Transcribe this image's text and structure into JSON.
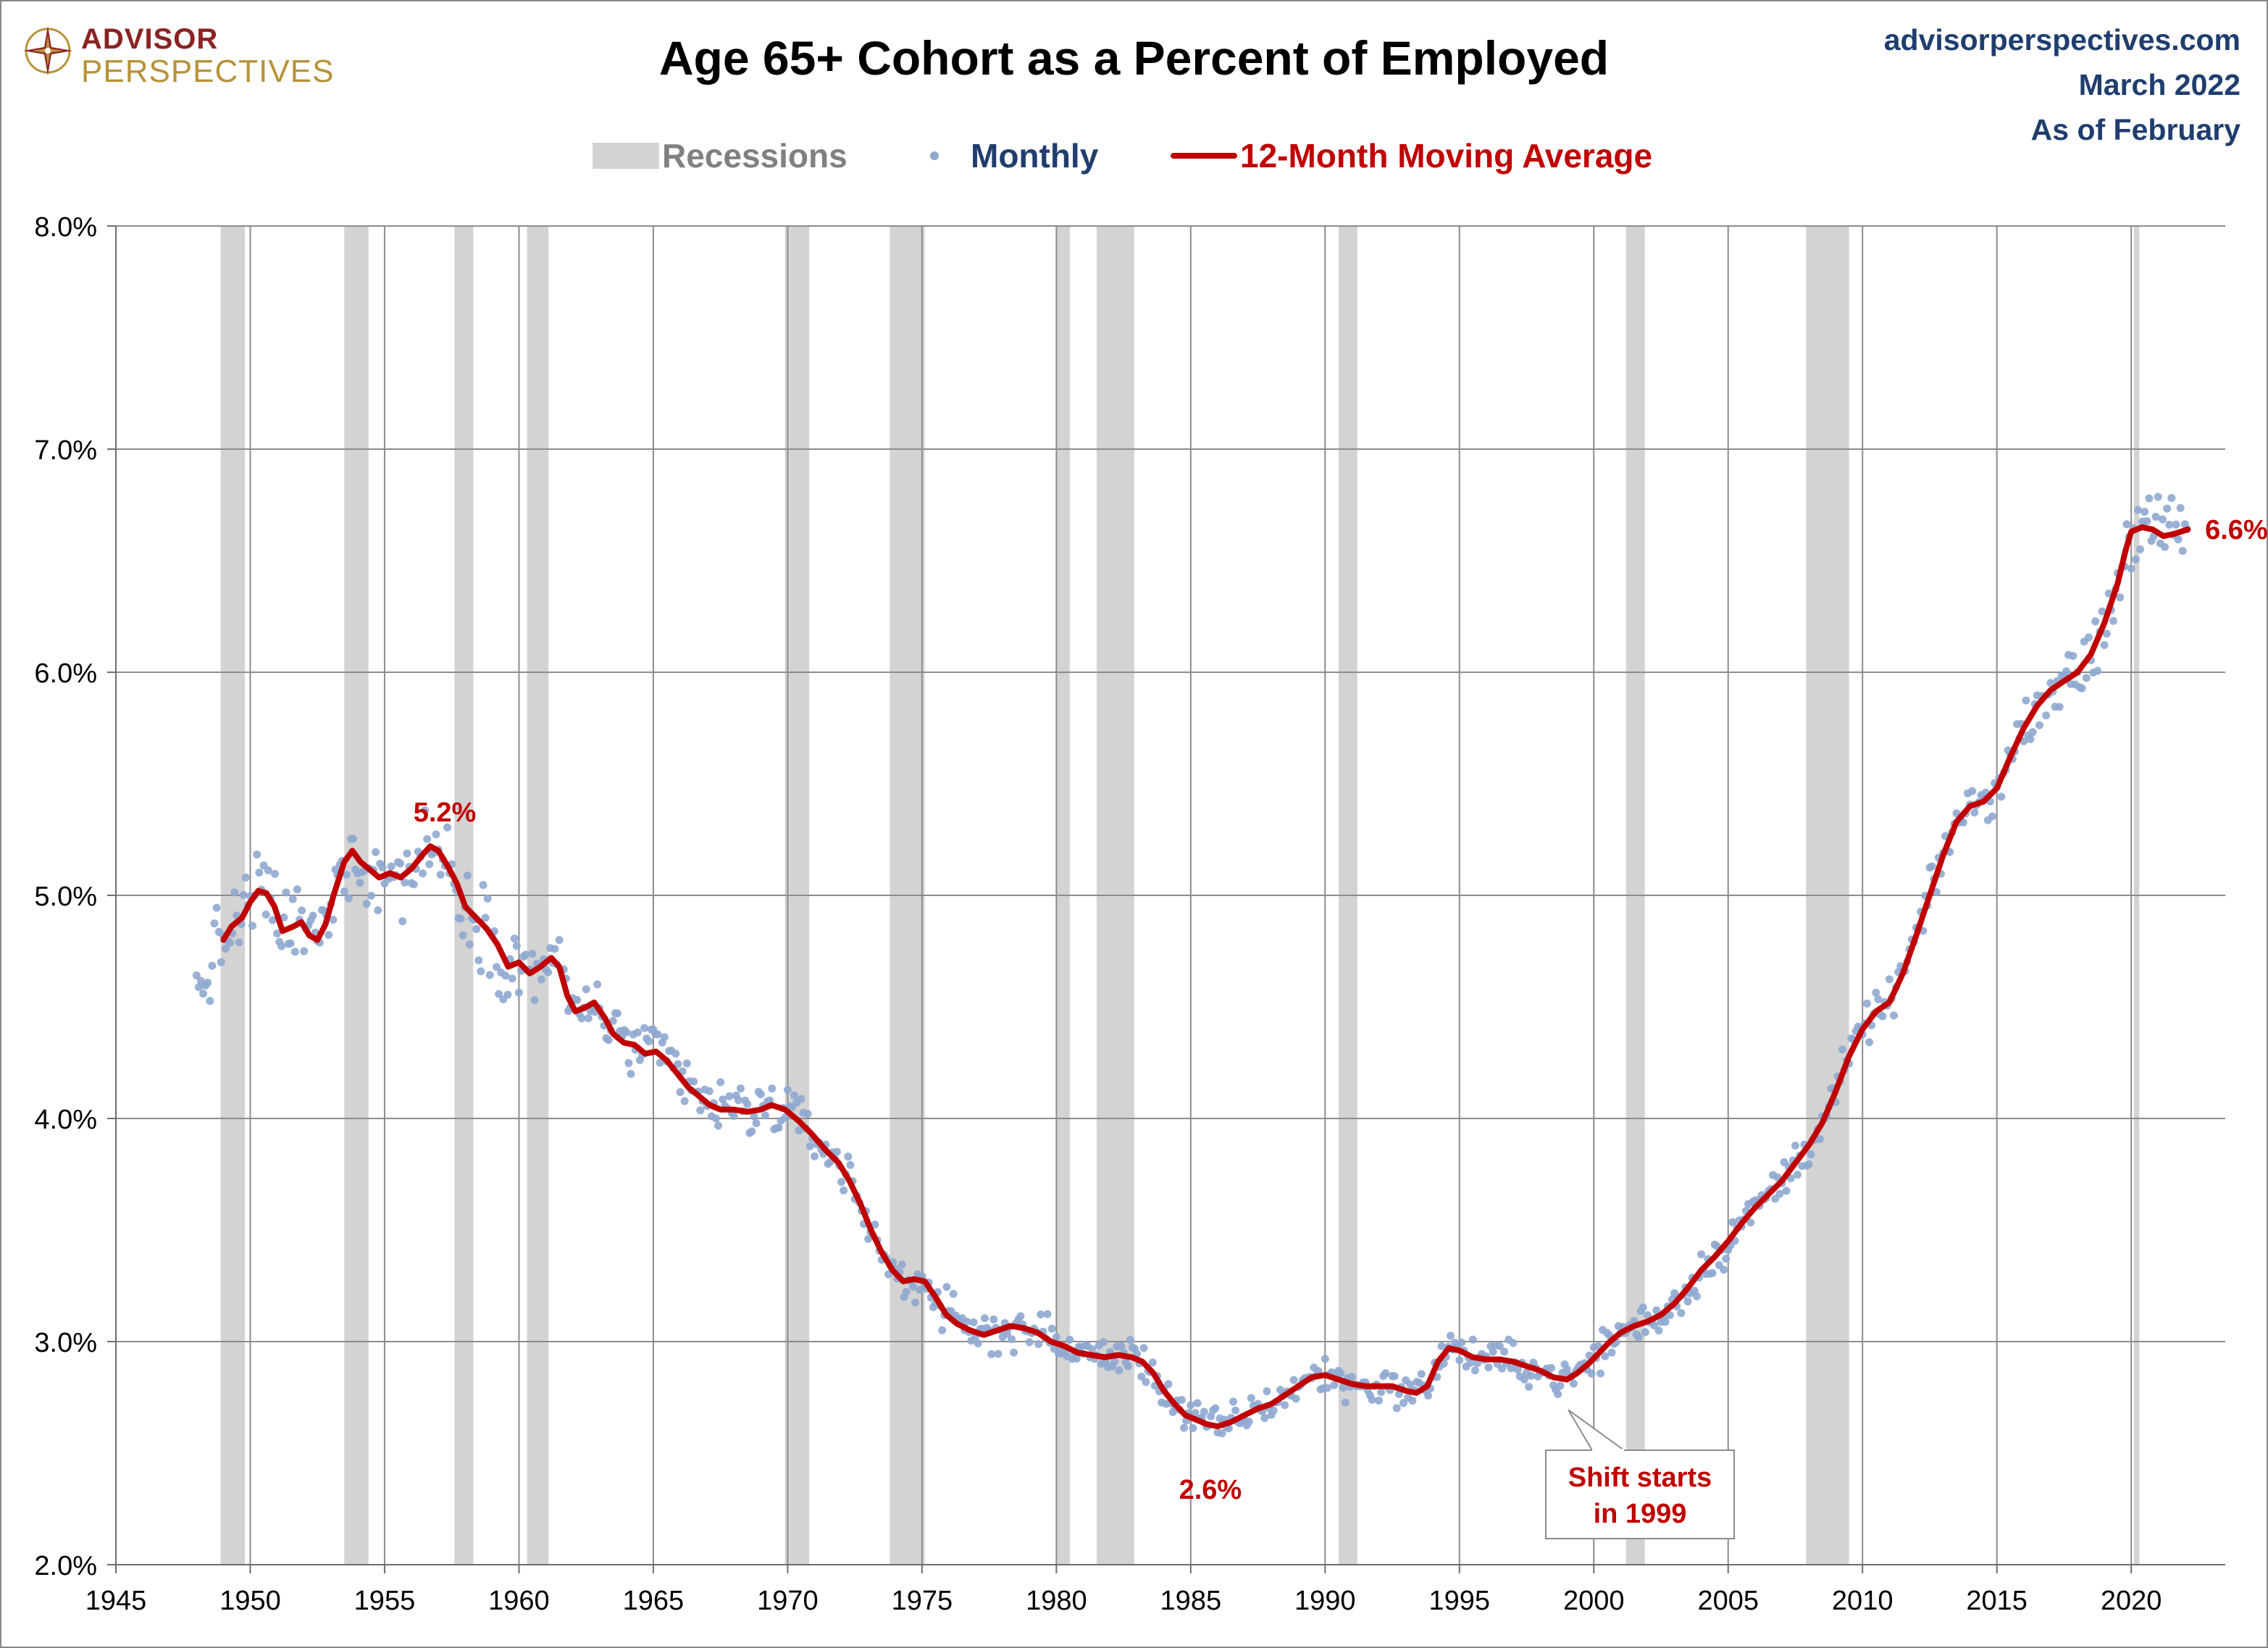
{
  "logo": {
    "line1": "ADVISOR",
    "line2": "PERSPECTIVES"
  },
  "title": "Age 65+ Cohort as a Percent of Employed",
  "source": {
    "site": "advisorperspectives.com",
    "date": "March 2022",
    "as_of": "As of February"
  },
  "legend": {
    "recessions": "Recessions",
    "monthly": "Monthly",
    "moving_average": "12-Month Moving Average"
  },
  "colors": {
    "recession": "#d3d3d3",
    "monthly": "#8fa8d0",
    "moving_average": "#c00000",
    "legend_recessions_text": "#808080",
    "legend_monthly_text": "#1f3e6e",
    "annotation": "#c00000"
  },
  "chart_data": {
    "type": "scatter",
    "title": "Age 65+ Cohort as a Percent of Employed",
    "xlim": [
      1945,
      2023.5
    ],
    "ylim": [
      2.0,
      8.0
    ],
    "x_ticks": [
      1945,
      1950,
      1955,
      1960,
      1965,
      1970,
      1975,
      1980,
      1985,
      1990,
      1995,
      2000,
      2005,
      2010,
      2015,
      2020
    ],
    "x_tick_labels": [
      "1945",
      "1950",
      "1955",
      "1960",
      "1965",
      "1970",
      "1975",
      "1980",
      "1985",
      "1990",
      "1995",
      "2000",
      "2005",
      "2010",
      "2015",
      "2020"
    ],
    "y_ticks": [
      2,
      3,
      4,
      5,
      6,
      7,
      8
    ],
    "y_tick_labels": [
      "2.0%",
      "3.0%",
      "4.0%",
      "5.0%",
      "6.0%",
      "7.0%",
      "8.0%"
    ],
    "grid": true,
    "recessions": [
      [
        1948.9,
        1949.8
      ],
      [
        1953.5,
        1954.4
      ],
      [
        1957.6,
        1958.3
      ],
      [
        1960.3,
        1961.1
      ],
      [
        1969.9,
        1970.8
      ],
      [
        1973.8,
        1975.1
      ],
      [
        1980.0,
        1980.5
      ],
      [
        1981.5,
        1982.9
      ],
      [
        1990.5,
        1991.2
      ],
      [
        2001.2,
        2001.9
      ],
      [
        2007.9,
        2009.5
      ],
      [
        2020.1,
        2020.3
      ]
    ],
    "moving_average_points": [
      [
        1949.0,
        4.8
      ],
      [
        1949.3,
        4.86
      ],
      [
        1949.7,
        4.9
      ],
      [
        1950.0,
        4.97
      ],
      [
        1950.3,
        5.02
      ],
      [
        1950.6,
        5.01
      ],
      [
        1950.9,
        4.95
      ],
      [
        1951.2,
        4.84
      ],
      [
        1951.6,
        4.86
      ],
      [
        1951.9,
        4.88
      ],
      [
        1952.2,
        4.82
      ],
      [
        1952.5,
        4.8
      ],
      [
        1952.8,
        4.87
      ],
      [
        1953.1,
        5.0
      ],
      [
        1953.5,
        5.15
      ],
      [
        1953.8,
        5.2
      ],
      [
        1954.1,
        5.15
      ],
      [
        1954.4,
        5.12
      ],
      [
        1954.8,
        5.08
      ],
      [
        1955.2,
        5.1
      ],
      [
        1955.6,
        5.08
      ],
      [
        1956.0,
        5.12
      ],
      [
        1956.4,
        5.18
      ],
      [
        1956.7,
        5.22
      ],
      [
        1957.0,
        5.2
      ],
      [
        1957.4,
        5.12
      ],
      [
        1957.7,
        5.05
      ],
      [
        1958.0,
        4.95
      ],
      [
        1958.4,
        4.9
      ],
      [
        1958.8,
        4.85
      ],
      [
        1959.2,
        4.78
      ],
      [
        1959.6,
        4.68
      ],
      [
        1960.0,
        4.7
      ],
      [
        1960.4,
        4.65
      ],
      [
        1960.8,
        4.68
      ],
      [
        1961.2,
        4.72
      ],
      [
        1961.5,
        4.68
      ],
      [
        1961.8,
        4.55
      ],
      [
        1962.1,
        4.48
      ],
      [
        1962.5,
        4.5
      ],
      [
        1962.8,
        4.52
      ],
      [
        1963.2,
        4.45
      ],
      [
        1963.5,
        4.38
      ],
      [
        1963.9,
        4.34
      ],
      [
        1964.3,
        4.33
      ],
      [
        1964.7,
        4.29
      ],
      [
        1965.1,
        4.3
      ],
      [
        1965.5,
        4.26
      ],
      [
        1965.9,
        4.2
      ],
      [
        1966.3,
        4.14
      ],
      [
        1966.7,
        4.1
      ],
      [
        1967.1,
        4.06
      ],
      [
        1967.5,
        4.04
      ],
      [
        1968.0,
        4.04
      ],
      [
        1968.5,
        4.03
      ],
      [
        1969.0,
        4.04
      ],
      [
        1969.4,
        4.06
      ],
      [
        1969.9,
        4.04
      ],
      [
        1970.4,
        3.99
      ],
      [
        1970.9,
        3.93
      ],
      [
        1971.4,
        3.86
      ],
      [
        1971.9,
        3.8
      ],
      [
        1972.3,
        3.72
      ],
      [
        1972.7,
        3.62
      ],
      [
        1973.1,
        3.5
      ],
      [
        1973.5,
        3.4
      ],
      [
        1973.9,
        3.32
      ],
      [
        1974.3,
        3.27
      ],
      [
        1974.7,
        3.28
      ],
      [
        1975.1,
        3.27
      ],
      [
        1975.5,
        3.2
      ],
      [
        1975.9,
        3.12
      ],
      [
        1976.3,
        3.08
      ],
      [
        1976.8,
        3.05
      ],
      [
        1977.3,
        3.03
      ],
      [
        1977.8,
        3.05
      ],
      [
        1978.3,
        3.07
      ],
      [
        1978.8,
        3.06
      ],
      [
        1979.3,
        3.04
      ],
      [
        1979.8,
        3.0
      ],
      [
        1980.3,
        2.98
      ],
      [
        1980.8,
        2.95
      ],
      [
        1981.3,
        2.94
      ],
      [
        1981.8,
        2.93
      ],
      [
        1982.3,
        2.94
      ],
      [
        1982.8,
        2.93
      ],
      [
        1983.2,
        2.91
      ],
      [
        1983.6,
        2.86
      ],
      [
        1984.0,
        2.78
      ],
      [
        1984.4,
        2.72
      ],
      [
        1984.8,
        2.67
      ],
      [
        1985.2,
        2.65
      ],
      [
        1985.6,
        2.63
      ],
      [
        1986.0,
        2.62
      ],
      [
        1986.5,
        2.64
      ],
      [
        1987.0,
        2.67
      ],
      [
        1987.5,
        2.7
      ],
      [
        1988.0,
        2.72
      ],
      [
        1988.5,
        2.76
      ],
      [
        1989.0,
        2.8
      ],
      [
        1989.5,
        2.84
      ],
      [
        1990.0,
        2.85
      ],
      [
        1990.5,
        2.83
      ],
      [
        1991.0,
        2.81
      ],
      [
        1991.5,
        2.8
      ],
      [
        1992.0,
        2.8
      ],
      [
        1992.5,
        2.8
      ],
      [
        1993.0,
        2.78
      ],
      [
        1993.4,
        2.77
      ],
      [
        1993.8,
        2.8
      ],
      [
        1994.2,
        2.91
      ],
      [
        1994.6,
        2.97
      ],
      [
        1995.0,
        2.96
      ],
      [
        1995.5,
        2.93
      ],
      [
        1996.0,
        2.92
      ],
      [
        1996.5,
        2.92
      ],
      [
        1997.0,
        2.91
      ],
      [
        1997.5,
        2.89
      ],
      [
        1998.0,
        2.87
      ],
      [
        1998.5,
        2.84
      ],
      [
        1999.0,
        2.83
      ],
      [
        1999.4,
        2.86
      ],
      [
        1999.8,
        2.9
      ],
      [
        2000.2,
        2.95
      ],
      [
        2000.6,
        3.0
      ],
      [
        2001.0,
        3.04
      ],
      [
        2001.5,
        3.07
      ],
      [
        2002.0,
        3.09
      ],
      [
        2002.5,
        3.12
      ],
      [
        2003.0,
        3.17
      ],
      [
        2003.5,
        3.24
      ],
      [
        2004.0,
        3.32
      ],
      [
        2004.5,
        3.38
      ],
      [
        2005.0,
        3.45
      ],
      [
        2005.5,
        3.53
      ],
      [
        2006.0,
        3.6
      ],
      [
        2006.5,
        3.66
      ],
      [
        2007.0,
        3.72
      ],
      [
        2007.5,
        3.8
      ],
      [
        2008.0,
        3.88
      ],
      [
        2008.5,
        3.98
      ],
      [
        2009.0,
        4.12
      ],
      [
        2009.5,
        4.28
      ],
      [
        2010.0,
        4.4
      ],
      [
        2010.5,
        4.48
      ],
      [
        2011.0,
        4.52
      ],
      [
        2011.5,
        4.65
      ],
      [
        2012.0,
        4.82
      ],
      [
        2012.5,
        5.0
      ],
      [
        2013.0,
        5.18
      ],
      [
        2013.5,
        5.33
      ],
      [
        2014.0,
        5.4
      ],
      [
        2014.5,
        5.42
      ],
      [
        2015.0,
        5.48
      ],
      [
        2015.5,
        5.62
      ],
      [
        2016.0,
        5.75
      ],
      [
        2016.5,
        5.85
      ],
      [
        2017.0,
        5.92
      ],
      [
        2017.5,
        5.96
      ],
      [
        2018.0,
        6.0
      ],
      [
        2018.5,
        6.08
      ],
      [
        2019.0,
        6.22
      ],
      [
        2019.5,
        6.4
      ],
      [
        2019.8,
        6.55
      ],
      [
        2020.0,
        6.63
      ],
      [
        2020.4,
        6.65
      ],
      [
        2020.8,
        6.64
      ],
      [
        2021.2,
        6.61
      ],
      [
        2021.6,
        6.62
      ],
      [
        2022.1,
        6.64
      ]
    ],
    "annotations": [
      {
        "text": "5.2%",
        "x": 1956.7,
        "y": 5.22
      },
      {
        "text": "2.6%",
        "x": 1986.0,
        "y": 2.62
      },
      {
        "text": "6.6%",
        "x": 2022.1,
        "y": 6.64
      },
      {
        "text": "Shift starts in 1999",
        "lines": [
          "Shift starts",
          "in 1999"
        ],
        "x": 1999.0,
        "y": 2.83
      }
    ]
  }
}
